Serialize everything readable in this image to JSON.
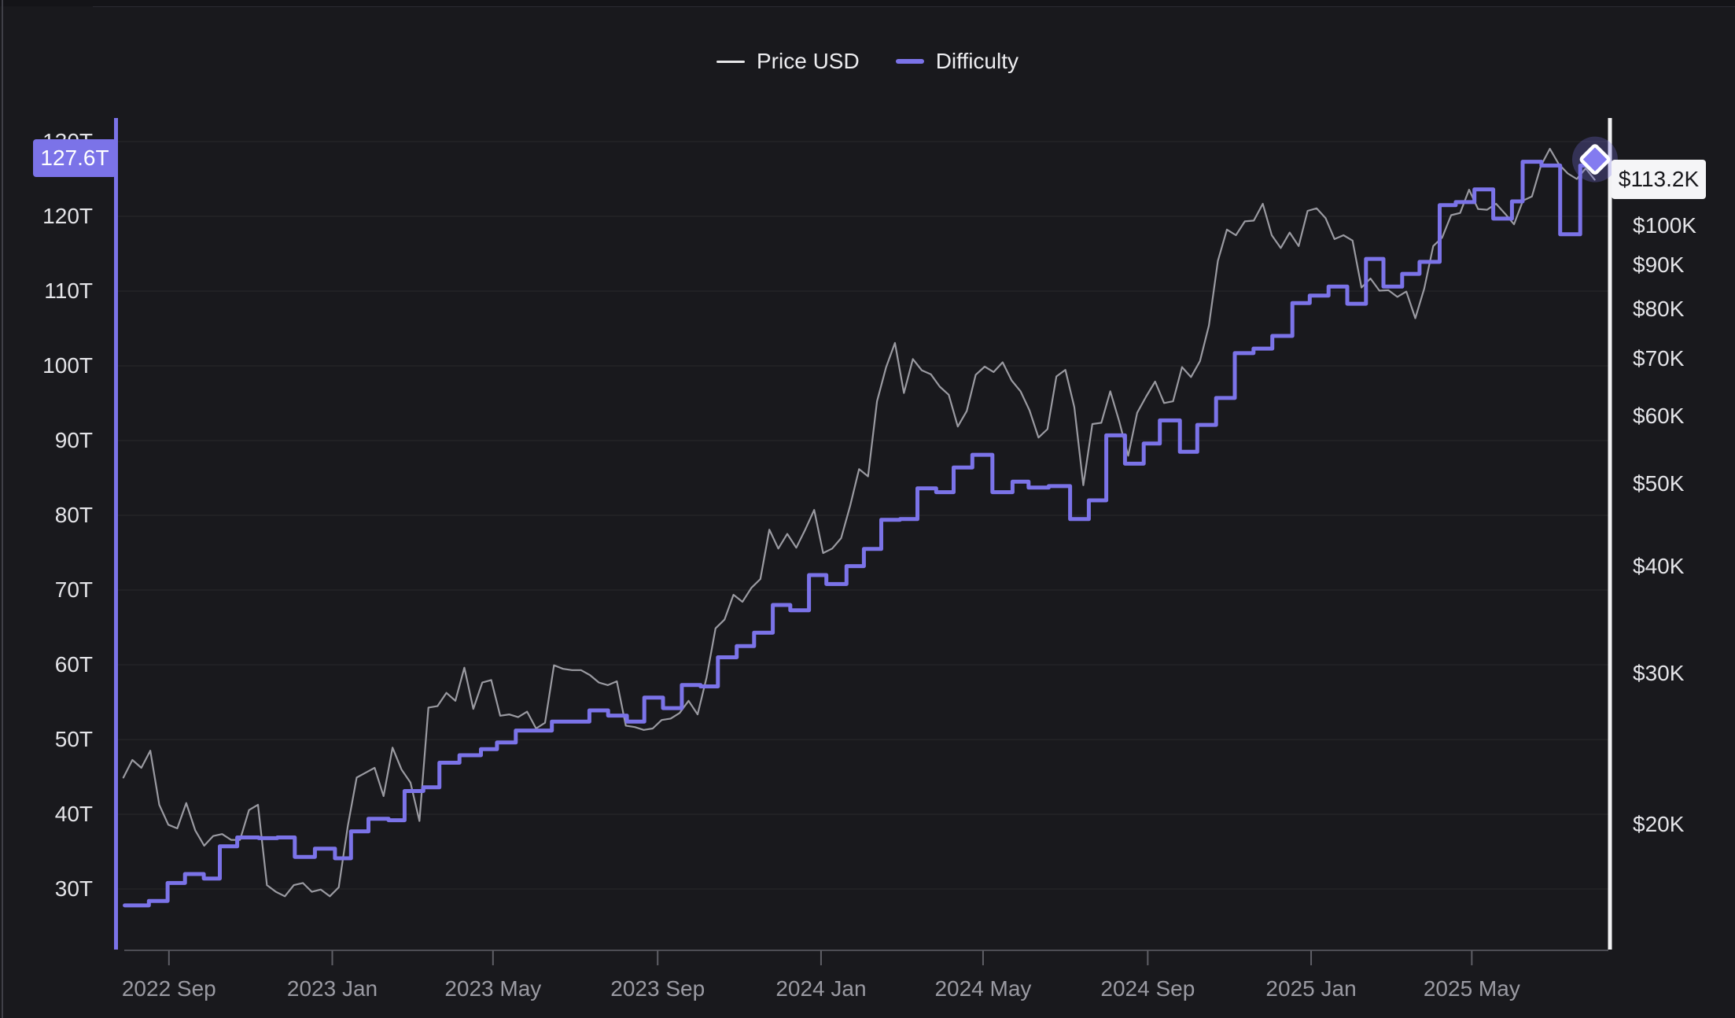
{
  "colors": {
    "background": "#19191d",
    "accent_purple": "#7b73e8",
    "price_line": "#9a9aa1",
    "grid_line": "rgba(255,255,255,0.07)",
    "bottom_axis_line": "#5f5f66",
    "right_axis_line": "#f2f2f4",
    "tick_label": "#e4e4e8",
    "date_label": "#9a9aa2",
    "difficulty_badge_bg": "#7b73e8",
    "difficulty_badge_text": "#ffffff",
    "price_badge_bg": "#f5f5f7",
    "price_badge_text": "#17171b",
    "marker_fill": "#837bf0",
    "marker_stroke": "#ffffff",
    "marker_glow": "rgba(122,114,232,0.28)"
  },
  "legend": {
    "items": [
      {
        "label": "Price USD",
        "color": "#e8e8ea"
      },
      {
        "label": "Difficulty",
        "color": "#7b73e8"
      }
    ]
  },
  "current": {
    "difficulty_label": "127.6T",
    "price_label": "$113.2K"
  },
  "chart_data": {
    "type": "line",
    "title": "",
    "legend_position": "top-center",
    "grid": "horizontal-only",
    "x_axis": {
      "ticks": [
        {
          "label": "2022 Sep",
          "date": "2022-09-01"
        },
        {
          "label": "2023 Jan",
          "date": "2023-01-01"
        },
        {
          "label": "2023 May",
          "date": "2023-05-01"
        },
        {
          "label": "2023 Sep",
          "date": "2023-09-01"
        },
        {
          "label": "2024 Jan",
          "date": "2024-01-01"
        },
        {
          "label": "2024 May",
          "date": "2024-05-01"
        },
        {
          "label": "2024 Sep",
          "date": "2024-09-01"
        },
        {
          "label": "2025 Jan",
          "date": "2025-01-01"
        },
        {
          "label": "2025 May",
          "date": "2025-05-01"
        }
      ],
      "range": [
        "2022-07-22",
        "2025-08-11"
      ]
    },
    "left_axis": {
      "title": "Difficulty",
      "unit": "T (trillion)",
      "scale": "linear",
      "ylim": [
        25.5,
        133
      ],
      "ticks": [
        {
          "label": "30T",
          "value": 30
        },
        {
          "label": "40T",
          "value": 40
        },
        {
          "label": "50T",
          "value": 50
        },
        {
          "label": "60T",
          "value": 60
        },
        {
          "label": "70T",
          "value": 70
        },
        {
          "label": "80T",
          "value": 80
        },
        {
          "label": "90T",
          "value": 90
        },
        {
          "label": "100T",
          "value": 100
        },
        {
          "label": "110T",
          "value": 110
        },
        {
          "label": "120T",
          "value": 120
        },
        {
          "label": "130T",
          "value": 130
        }
      ]
    },
    "right_axis": {
      "title": "Price USD",
      "unit": "$K",
      "scale": "log",
      "ylim": [
        13.5,
        133
      ],
      "ticks": [
        {
          "label": "$20K",
          "value": 20
        },
        {
          "label": "$30K",
          "value": 30
        },
        {
          "label": "$40K",
          "value": 40
        },
        {
          "label": "$50K",
          "value": 50
        },
        {
          "label": "$60K",
          "value": 60
        },
        {
          "label": "$70K",
          "value": 70
        },
        {
          "label": "$80K",
          "value": 80
        },
        {
          "label": "$90K",
          "value": 90
        },
        {
          "label": "$100K",
          "value": 100
        }
      ]
    },
    "series": [
      {
        "name": "Price USD",
        "axis": "right",
        "style": "line",
        "unit": "$K",
        "color": "#9a9aa1",
        "start_date": "2022-07-29",
        "interval_days": 6.7,
        "values": [
          22.7,
          23.8,
          23.3,
          24.4,
          21.1,
          20.0,
          19.8,
          21.2,
          19.7,
          18.9,
          19.4,
          19.5,
          19.2,
          19.2,
          20.8,
          21.1,
          17.0,
          16.7,
          16.5,
          17.0,
          17.1,
          16.7,
          16.8,
          16.5,
          16.9,
          19.9,
          22.7,
          23.0,
          23.3,
          21.6,
          24.6,
          23.2,
          22.4,
          20.2,
          27.4,
          27.5,
          28.5,
          27.9,
          30.5,
          27.3,
          29.3,
          29.5,
          26.8,
          26.9,
          26.7,
          27.1,
          25.9,
          26.3,
          30.7,
          30.4,
          30.3,
          30.3,
          29.9,
          29.3,
          29.1,
          29.4,
          26.1,
          26.0,
          25.8,
          25.9,
          26.5,
          26.6,
          27.0,
          27.9,
          26.9,
          29.7,
          33.9,
          34.7,
          37.1,
          36.4,
          37.8,
          38.7,
          44.2,
          42.0,
          43.7,
          42.1,
          44.2,
          46.6,
          41.5,
          42.0,
          43.2,
          47.1,
          52.0,
          51.0,
          62.4,
          68.3,
          73.0,
          63.8,
          69.9,
          67.8,
          67.1,
          64.9,
          63.5,
          58.3,
          60.8,
          67.0,
          68.5,
          67.5,
          69.3,
          66.0,
          64.1,
          60.9,
          56.6,
          57.9,
          66.7,
          67.9,
          61.4,
          49.8,
          58.7,
          58.9,
          64.1,
          59.1,
          53.9,
          60.5,
          63.2,
          65.8,
          62.1,
          62.4,
          68.4,
          66.6,
          69.5,
          76.5,
          91.0,
          99.0,
          97.5,
          101.2,
          101.4,
          106.1,
          97.5,
          94.2,
          98.2,
          94.7,
          104.1,
          104.8,
          102.1,
          96.5,
          97.5,
          96.1,
          84.7,
          86.8,
          84.0,
          84.1,
          82.6,
          83.8,
          78.0,
          84.5,
          94.7,
          96.9,
          102.9,
          103.5,
          110.2,
          104.6,
          104.4,
          106.1,
          103.3,
          100.4,
          107.0,
          108.2,
          117.5,
          123.0,
          118.0,
          115.1,
          113.4,
          116.7,
          113.2
        ],
        "last_value_label": "$113.2K"
      },
      {
        "name": "Difficulty",
        "axis": "left",
        "style": "step",
        "unit": "T",
        "color": "#7b73e8",
        "points": [
          [
            "2022-07-30",
            27.8
          ],
          [
            "2022-08-17",
            28.4
          ],
          [
            "2022-08-31",
            30.8
          ],
          [
            "2022-09-13",
            32.0
          ],
          [
            "2022-09-27",
            31.4
          ],
          [
            "2022-10-09",
            35.7
          ],
          [
            "2022-10-22",
            36.9
          ],
          [
            "2022-11-07",
            36.8
          ],
          [
            "2022-11-21",
            36.9
          ],
          [
            "2022-12-04",
            34.3
          ],
          [
            "2022-12-19",
            35.4
          ],
          [
            "2023-01-03",
            34.1
          ],
          [
            "2023-01-15",
            37.7
          ],
          [
            "2023-01-28",
            39.4
          ],
          [
            "2023-02-12",
            39.2
          ],
          [
            "2023-02-24",
            43.1
          ],
          [
            "2023-03-10",
            43.6
          ],
          [
            "2023-03-22",
            46.9
          ],
          [
            "2023-04-06",
            47.9
          ],
          [
            "2023-04-22",
            48.7
          ],
          [
            "2023-05-04",
            49.6
          ],
          [
            "2023-05-18",
            51.2
          ],
          [
            "2023-06-01",
            51.2
          ],
          [
            "2023-06-14",
            52.4
          ],
          [
            "2023-06-28",
            52.4
          ],
          [
            "2023-07-12",
            53.9
          ],
          [
            "2023-07-26",
            53.2
          ],
          [
            "2023-08-09",
            52.4
          ],
          [
            "2023-08-22",
            55.6
          ],
          [
            "2023-09-05",
            54.2
          ],
          [
            "2023-09-19",
            57.3
          ],
          [
            "2023-10-03",
            57.1
          ],
          [
            "2023-10-16",
            61.0
          ],
          [
            "2023-10-30",
            62.5
          ],
          [
            "2023-11-12",
            64.3
          ],
          [
            "2023-11-26",
            68.0
          ],
          [
            "2023-12-09",
            67.3
          ],
          [
            "2023-12-23",
            72.0
          ],
          [
            "2024-01-05",
            70.8
          ],
          [
            "2024-01-20",
            73.2
          ],
          [
            "2024-02-02",
            75.5
          ],
          [
            "2024-02-15",
            79.4
          ],
          [
            "2024-02-29",
            79.5
          ],
          [
            "2024-03-13",
            83.6
          ],
          [
            "2024-03-27",
            83.1
          ],
          [
            "2024-04-09",
            86.4
          ],
          [
            "2024-04-23",
            88.1
          ],
          [
            "2024-05-08",
            83.1
          ],
          [
            "2024-05-23",
            84.5
          ],
          [
            "2024-06-04",
            83.7
          ],
          [
            "2024-06-19",
            83.9
          ],
          [
            "2024-07-05",
            79.5
          ],
          [
            "2024-07-19",
            82.0
          ],
          [
            "2024-08-01",
            90.7
          ],
          [
            "2024-08-15",
            86.9
          ],
          [
            "2024-08-29",
            89.6
          ],
          [
            "2024-09-10",
            92.7
          ],
          [
            "2024-09-25",
            88.5
          ],
          [
            "2024-10-08",
            92.1
          ],
          [
            "2024-10-22",
            95.7
          ],
          [
            "2024-11-05",
            101.7
          ],
          [
            "2024-11-19",
            102.3
          ],
          [
            "2024-12-03",
            104.0
          ],
          [
            "2024-12-18",
            108.4
          ],
          [
            "2024-12-31",
            109.4
          ],
          [
            "2025-01-14",
            110.6
          ],
          [
            "2025-01-28",
            108.3
          ],
          [
            "2025-02-11",
            114.3
          ],
          [
            "2025-02-24",
            110.6
          ],
          [
            "2025-03-10",
            112.3
          ],
          [
            "2025-03-23",
            113.9
          ],
          [
            "2025-04-07",
            121.5
          ],
          [
            "2025-04-19",
            121.9
          ],
          [
            "2025-05-03",
            123.6
          ],
          [
            "2025-05-17",
            119.7
          ],
          [
            "2025-05-31",
            122.0
          ],
          [
            "2025-06-08",
            127.3
          ],
          [
            "2025-06-22",
            126.8
          ],
          [
            "2025-07-06",
            117.6
          ],
          [
            "2025-07-21",
            126.8
          ],
          [
            "2025-08-01",
            127.62
          ]
        ],
        "last_value_label": "127.6T"
      }
    ]
  }
}
